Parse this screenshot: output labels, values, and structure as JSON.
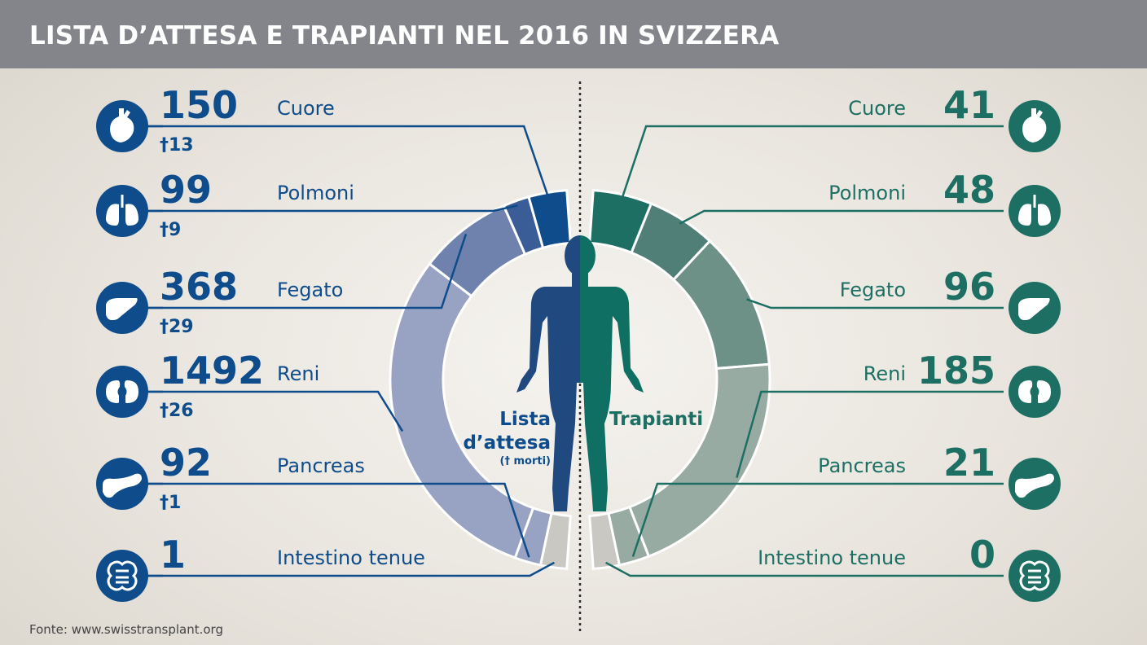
{
  "title": "LISTA D’ATTESA E TRAPIANTI NEL 2016 IN SVIZZERA",
  "source": "Fonte: www.swisstransplant.org",
  "center_labels": {
    "left_line1": "Lista",
    "left_line2": "d’attesa",
    "left_note": "(† morti)",
    "right": "Trapianti"
  },
  "colors": {
    "blue_dark": "#0e4c8b",
    "blue_mid": "#3a5d97",
    "blue_ring_1": "#6f82ad",
    "blue_ring_2": "#98a2c2",
    "green_dark": "#1d6f64",
    "green_ring_1": "#4f7f77",
    "green_ring_2": "#6e9187",
    "green_ring_3": "#97aba2",
    "grey_ring": "#c9c8c2"
  },
  "chart_data": {
    "type": "donut",
    "categories": [
      "Cuore",
      "Polmoni",
      "Fegato",
      "Reni",
      "Pancreas",
      "Intestino tenue"
    ],
    "icons": [
      "heart-icon",
      "lungs-icon",
      "liver-icon",
      "kidneys-icon",
      "pancreas-icon",
      "intestine-icon"
    ],
    "series": [
      {
        "name": "Lista d’attesa",
        "values": [
          150,
          99,
          368,
          1492,
          92,
          1
        ],
        "deaths": [
          13,
          9,
          29,
          26,
          1,
          null
        ],
        "death_prefix": "†"
      },
      {
        "name": "Trapianti",
        "values": [
          41,
          48,
          96,
          185,
          21,
          0
        ]
      }
    ]
  }
}
